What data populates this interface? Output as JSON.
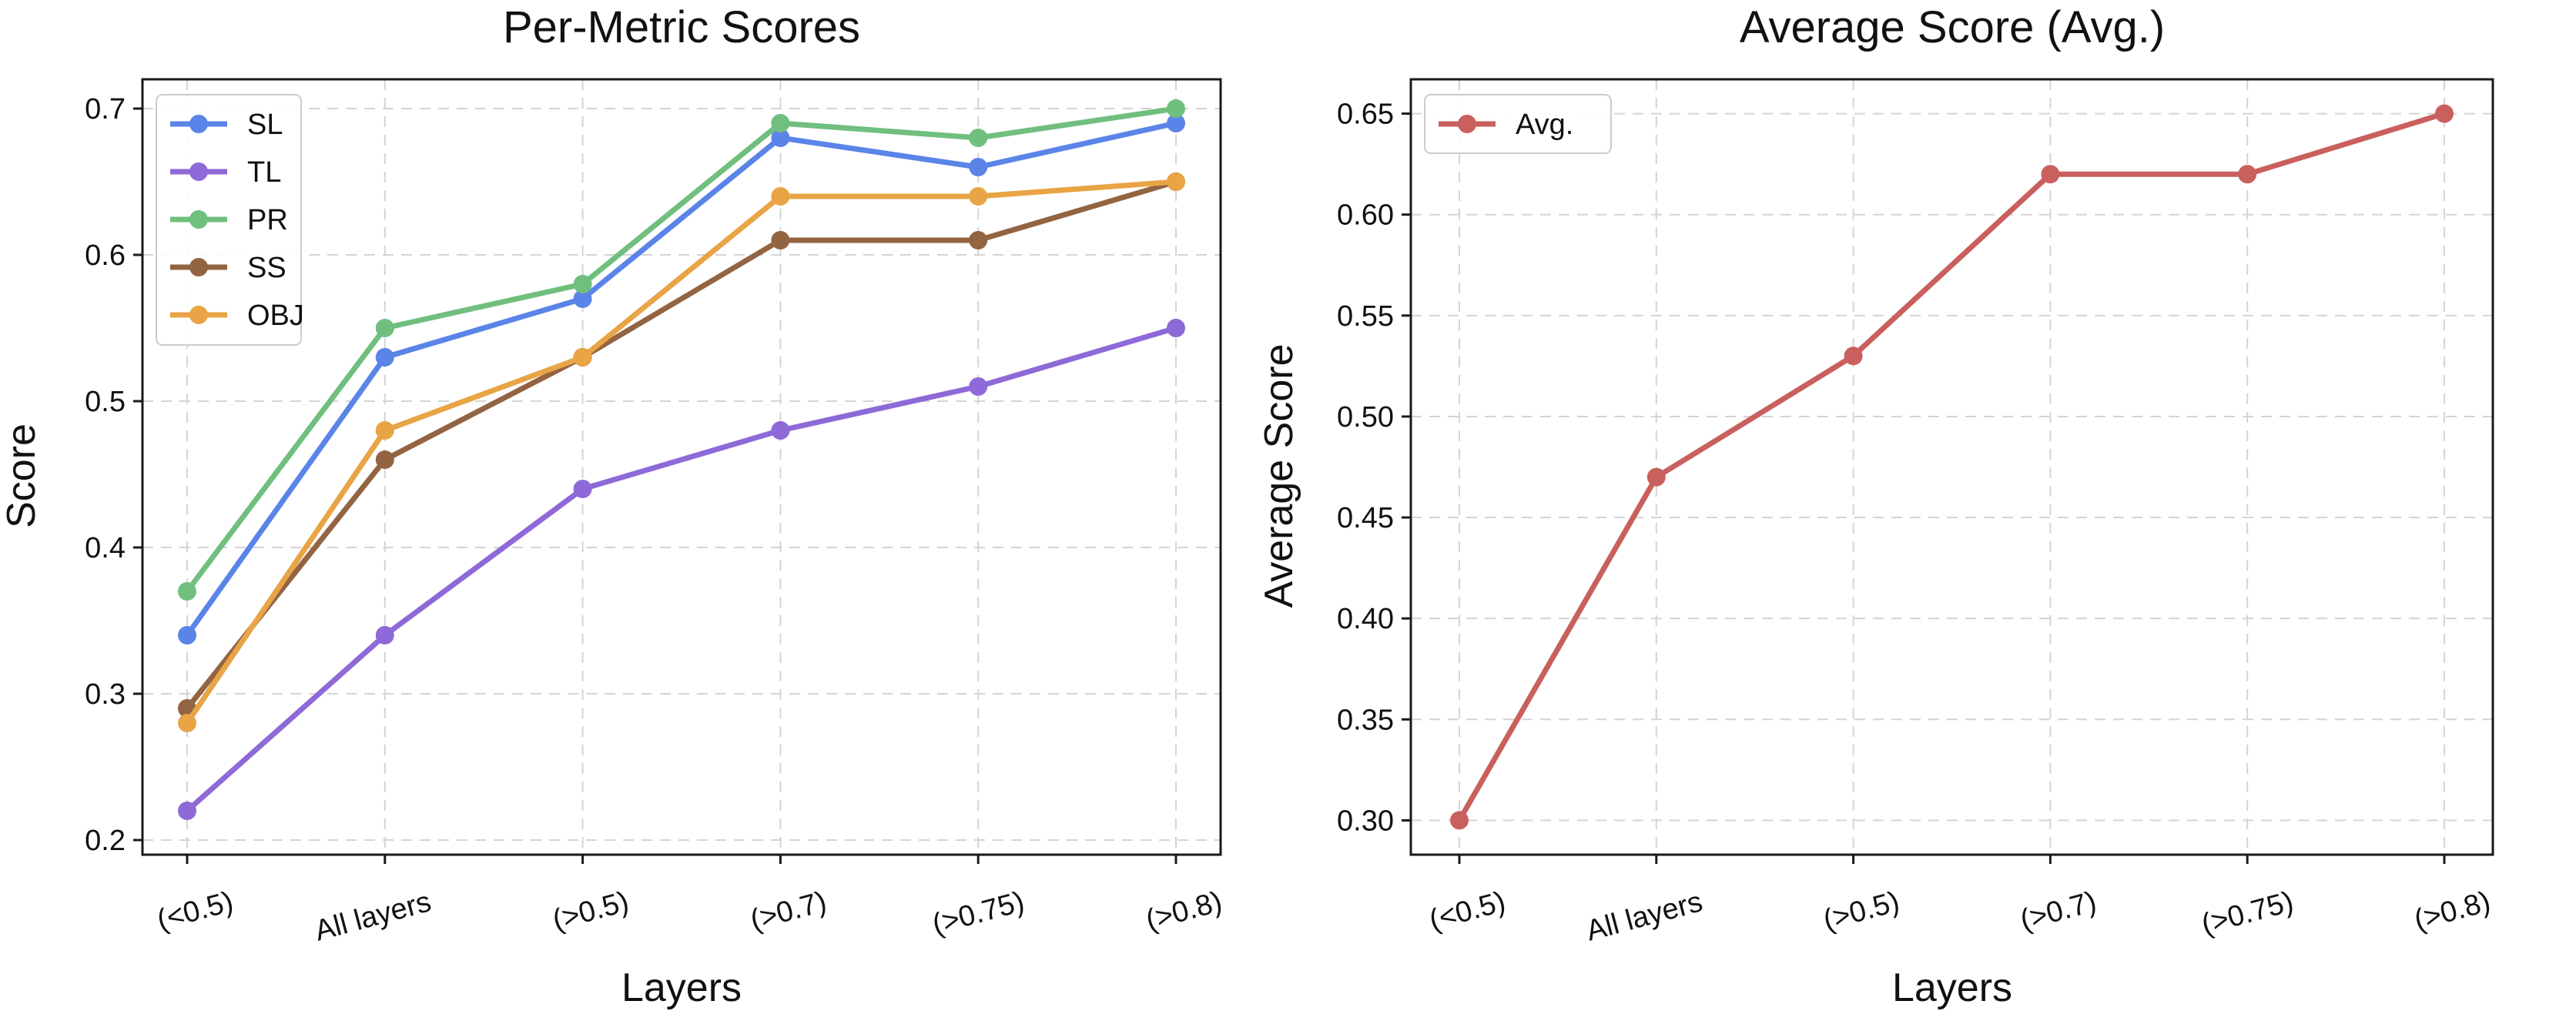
{
  "chart_data": [
    {
      "type": "line",
      "title": "Per-Metric Scores",
      "xlabel": "Layers",
      "ylabel": "Score",
      "categories": [
        "(<0.5)",
        "All layers",
        "(>0.5)",
        "(>0.7)",
        "(>0.75)",
        "(>0.8)"
      ],
      "ylim": [
        0.19,
        0.72
      ],
      "yticks": [
        0.2,
        0.3,
        0.4,
        0.5,
        0.6,
        0.7
      ],
      "ytick_labels": [
        "0.2",
        "0.3",
        "0.4",
        "0.5",
        "0.6",
        "0.7"
      ],
      "grid": true,
      "legend_position": "top-left",
      "series": [
        {
          "name": "SL",
          "color": "#5B84E8",
          "values": [
            0.34,
            0.53,
            0.57,
            0.68,
            0.66,
            0.69
          ]
        },
        {
          "name": "TL",
          "color": "#8E69D8",
          "values": [
            0.22,
            0.34,
            0.44,
            0.48,
            0.51,
            0.55
          ]
        },
        {
          "name": "PR",
          "color": "#70BF7E",
          "values": [
            0.37,
            0.55,
            0.58,
            0.69,
            0.68,
            0.7
          ]
        },
        {
          "name": "SS",
          "color": "#936442",
          "values": [
            0.29,
            0.46,
            0.53,
            0.61,
            0.61,
            0.65
          ]
        },
        {
          "name": "OBJ",
          "color": "#E8A445",
          "values": [
            0.28,
            0.48,
            0.53,
            0.64,
            0.64,
            0.65
          ]
        }
      ]
    },
    {
      "type": "line",
      "title": "Average Score (Avg.)",
      "xlabel": "Layers",
      "ylabel": "Average Score",
      "categories": [
        "(<0.5)",
        "All layers",
        "(>0.5)",
        "(>0.7)",
        "(>0.75)",
        "(>0.8)"
      ],
      "ylim": [
        0.283,
        0.667
      ],
      "yticks": [
        0.3,
        0.35,
        0.4,
        0.45,
        0.5,
        0.55,
        0.6,
        0.65
      ],
      "ytick_labels": [
        "0.30",
        "0.35",
        "0.40",
        "0.45",
        "0.50",
        "0.55",
        "0.60",
        "0.65"
      ],
      "grid": true,
      "legend_position": "top-left",
      "series": [
        {
          "name": "Avg.",
          "color": "#C9605E",
          "values": [
            0.3,
            0.47,
            0.53,
            0.62,
            0.62,
            0.65
          ]
        }
      ]
    }
  ]
}
